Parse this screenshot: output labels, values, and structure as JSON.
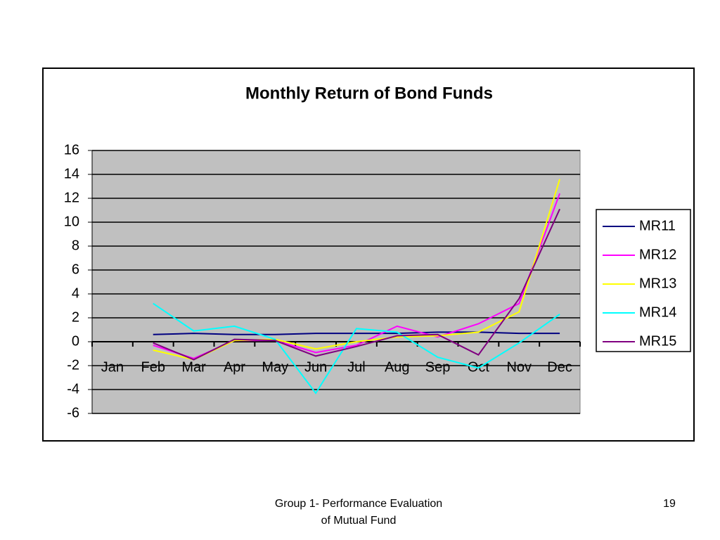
{
  "chart_data": {
    "type": "line",
    "title": "Monthly Return of Bond Funds",
    "categories": [
      "Jan",
      "Feb",
      "Mar",
      "Apr",
      "May",
      "Jun",
      "Jul",
      "Aug",
      "Sep",
      "Oct",
      "Nov",
      "Dec"
    ],
    "series": [
      {
        "name": "MR11",
        "color": "#000080",
        "values": [
          null,
          0.6,
          0.7,
          0.6,
          0.6,
          0.7,
          0.7,
          0.7,
          0.8,
          0.8,
          0.7,
          0.7
        ]
      },
      {
        "name": "MR12",
        "color": "#ff00ff",
        "values": [
          null,
          -0.3,
          -1.4,
          0.1,
          0.1,
          -0.9,
          -0.3,
          1.3,
          0.4,
          1.5,
          3.2,
          12.4
        ]
      },
      {
        "name": "MR13",
        "color": "#ffff00",
        "values": [
          null,
          -0.7,
          -1.5,
          0.1,
          0.2,
          -0.6,
          0,
          0.4,
          0.5,
          0.8,
          2.5,
          13.6
        ]
      },
      {
        "name": "MR14",
        "color": "#00ffff",
        "values": [
          null,
          3.2,
          0.9,
          1.3,
          0.2,
          -4.3,
          1.1,
          0.8,
          -1.3,
          -2.2,
          -0.1,
          2.3
        ]
      },
      {
        "name": "MR15",
        "color": "#800080",
        "values": [
          null,
          -0.1,
          -1.5,
          0.2,
          0.1,
          -1.2,
          -0.4,
          0.5,
          0.6,
          -1.1,
          3.6,
          11.1
        ]
      }
    ],
    "ylim": [
      -6,
      16
    ],
    "yticks": [
      -6,
      -4,
      -2,
      0,
      2,
      4,
      6,
      8,
      10,
      12,
      14,
      16
    ],
    "grid": true,
    "legend": "right",
    "plot_background": "#c0c0c0"
  },
  "footer": {
    "lines": [
      "Group 1- Performance Evaluation",
      "of Mutual Fund"
    ],
    "page": "19"
  }
}
